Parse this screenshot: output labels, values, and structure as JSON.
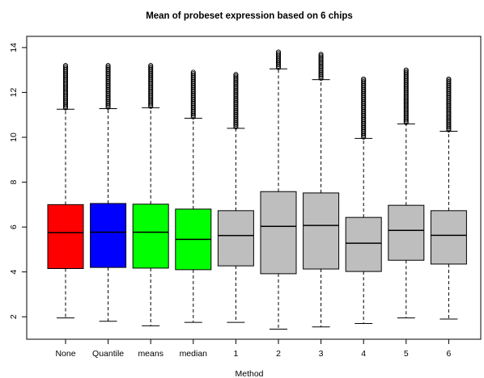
{
  "chart_data": {
    "type": "boxplot",
    "title": "Mean of probeset expression based on 6 chips",
    "xlabel": "Method",
    "ylabel": "",
    "ylim": [
      1.0,
      14.5
    ],
    "yticks": [
      2,
      4,
      6,
      8,
      10,
      12,
      14
    ],
    "grid": false,
    "categories": [
      "None",
      "Quantile",
      "means",
      "median",
      "1",
      "2",
      "3",
      "4",
      "5",
      "6"
    ],
    "boxes": [
      {
        "label": "None",
        "color": "#ff0000",
        "whisker_low": 1.95,
        "q1": 4.15,
        "median": 5.75,
        "q3": 7.0,
        "whisker_high": 11.25,
        "outlier_high": 13.2
      },
      {
        "label": "Quantile",
        "color": "#0000ff",
        "whisker_low": 1.8,
        "q1": 4.2,
        "median": 5.77,
        "q3": 7.05,
        "whisker_high": 11.28,
        "outlier_high": 13.2
      },
      {
        "label": "means",
        "color": "#00ff00",
        "whisker_low": 1.6,
        "q1": 4.17,
        "median": 5.77,
        "q3": 7.02,
        "whisker_high": 11.32,
        "outlier_high": 13.2
      },
      {
        "label": "median",
        "color": "#00ff00",
        "whisker_low": 1.75,
        "q1": 4.1,
        "median": 5.45,
        "q3": 6.8,
        "whisker_high": 10.85,
        "outlier_high": 12.9
      },
      {
        "label": "1",
        "color": "#bebebe",
        "whisker_low": 1.75,
        "q1": 4.27,
        "median": 5.62,
        "q3": 6.73,
        "whisker_high": 10.4,
        "outlier_high": 12.8
      },
      {
        "label": "2",
        "color": "#bebebe",
        "whisker_low": 1.45,
        "q1": 3.92,
        "median": 6.03,
        "q3": 7.58,
        "whisker_high": 13.05,
        "outlier_high": 13.8
      },
      {
        "label": "3",
        "color": "#bebebe",
        "whisker_low": 1.55,
        "q1": 4.13,
        "median": 6.07,
        "q3": 7.52,
        "whisker_high": 12.57,
        "outlier_high": 13.7
      },
      {
        "label": "4",
        "color": "#bebebe",
        "whisker_low": 1.7,
        "q1": 4.02,
        "median": 5.28,
        "q3": 6.43,
        "whisker_high": 9.95,
        "outlier_high": 12.6
      },
      {
        "label": "5",
        "color": "#bebebe",
        "whisker_low": 1.95,
        "q1": 4.52,
        "median": 5.85,
        "q3": 6.97,
        "whisker_high": 10.6,
        "outlier_high": 13.0
      },
      {
        "label": "6",
        "color": "#bebebe",
        "whisker_low": 1.9,
        "q1": 4.35,
        "median": 5.63,
        "q3": 6.73,
        "whisker_high": 10.27,
        "outlier_high": 12.6
      }
    ]
  }
}
